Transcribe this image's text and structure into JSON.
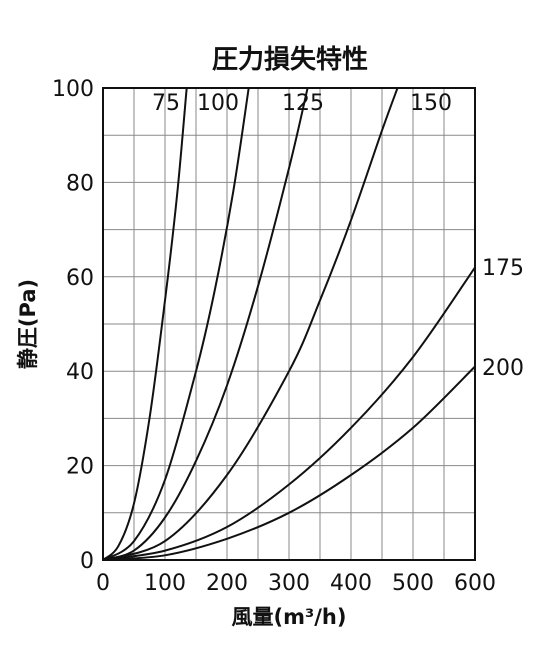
{
  "chart_data": {
    "type": "line",
    "title": "圧力損失特性",
    "xlabel": "風量(m³/h)",
    "ylabel": "静圧(Pa)",
    "xlim": [
      0,
      600
    ],
    "ylim": [
      0,
      100
    ],
    "x_ticks": [
      0,
      100,
      200,
      300,
      400,
      500,
      600
    ],
    "y_ticks": [
      0,
      20,
      40,
      60,
      80,
      100
    ],
    "grid": true,
    "series": [
      {
        "name": "75",
        "x": [
          0,
          25,
          50,
          75,
          100,
          120,
          135
        ],
        "y": [
          0,
          3,
          12,
          30,
          55,
          78,
          100
        ]
      },
      {
        "name": "100",
        "x": [
          0,
          50,
          100,
          150,
          180,
          210,
          235
        ],
        "y": [
          0,
          4,
          17,
          40,
          57,
          78,
          100
        ]
      },
      {
        "name": "125",
        "x": [
          0,
          50,
          100,
          150,
          200,
          250,
          300,
          330
        ],
        "y": [
          0,
          2,
          9,
          21,
          37,
          58,
          83,
          100
        ]
      },
      {
        "name": "150",
        "x": [
          0,
          100,
          200,
          300,
          350,
          400,
          450,
          475
        ],
        "y": [
          0,
          4,
          18,
          40,
          55,
          72,
          91,
          100
        ]
      },
      {
        "name": "175",
        "x": [
          0,
          100,
          200,
          300,
          400,
          500,
          600
        ],
        "y": [
          0,
          2,
          7,
          16,
          28,
          43,
          62
        ]
      },
      {
        "name": "200",
        "x": [
          0,
          100,
          200,
          300,
          400,
          500,
          600
        ],
        "y": [
          0,
          1,
          4.5,
          10,
          18,
          28,
          41
        ]
      }
    ]
  }
}
